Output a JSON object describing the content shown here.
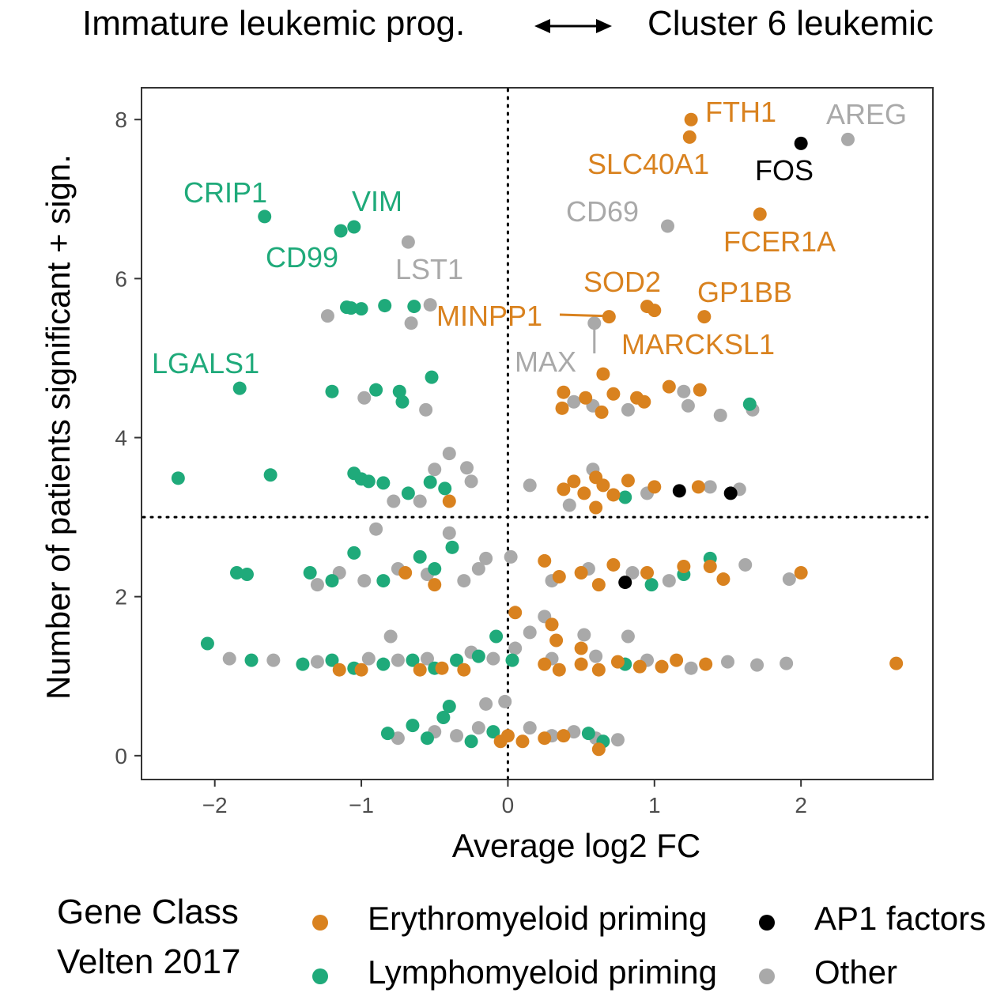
{
  "colors": {
    "erythromyeloid": "#d9821f",
    "lymphomyeloid": "#1faa7a",
    "ap1": "#000000",
    "other": "#a9a9a9"
  },
  "chart_data": {
    "type": "scatter",
    "title_left": "Immature leukemic prog.",
    "title_right": "Cluster 6 leukemic",
    "xlabel": "Average log2 FC",
    "ylabel": "Number of patients significant + sign.",
    "xlim": [
      -2.5,
      2.9
    ],
    "ylim": [
      -0.3,
      8.4
    ],
    "x_ticks": [
      {
        "value": -2,
        "label": "−2"
      },
      {
        "value": -1,
        "label": "−1"
      },
      {
        "value": 0,
        "label": "0"
      },
      {
        "value": 1,
        "label": "1"
      },
      {
        "value": 2,
        "label": "2"
      }
    ],
    "y_ticks": [
      {
        "value": 0,
        "label": "0"
      },
      {
        "value": 2,
        "label": "2"
      },
      {
        "value": 4,
        "label": "4"
      },
      {
        "value": 6,
        "label": "6"
      },
      {
        "value": 8,
        "label": "8"
      }
    ],
    "reference_lines": {
      "x": 0,
      "y": 3
    },
    "grid": false,
    "legend": {
      "title_line1": "Gene Class",
      "title_line2": "Velten 2017",
      "position": "bottom",
      "entries": [
        {
          "key": "erythromyeloid",
          "label": "Erythromyeloid priming"
        },
        {
          "key": "ap1",
          "label": "AP1 factors"
        },
        {
          "key": "lymphomyeloid",
          "label": "Lymphomyeloid priming"
        },
        {
          "key": "other",
          "label": "Other"
        }
      ]
    },
    "labeled_genes": [
      {
        "gene": "FTH1",
        "x": 1.25,
        "y": 8.0,
        "class": "erythromyeloid"
      },
      {
        "gene": "SLC40A1",
        "x": 1.24,
        "y": 7.78,
        "class": "erythromyeloid"
      },
      {
        "gene": "AREG",
        "x": 2.32,
        "y": 7.75,
        "class": "other"
      },
      {
        "gene": "FOS",
        "x": 2.0,
        "y": 7.7,
        "class": "ap1"
      },
      {
        "gene": "CRIP1",
        "x": -1.66,
        "y": 6.78,
        "class": "lymphomyeloid"
      },
      {
        "gene": "VIM",
        "x": -1.05,
        "y": 6.65,
        "class": "lymphomyeloid"
      },
      {
        "gene": "CD99",
        "x": -1.14,
        "y": 6.6,
        "class": "lymphomyeloid"
      },
      {
        "gene": "CD69",
        "x": 1.09,
        "y": 6.66,
        "class": "other"
      },
      {
        "gene": "FCER1A",
        "x": 1.72,
        "y": 6.81,
        "class": "erythromyeloid"
      },
      {
        "gene": "LST1",
        "x": -0.68,
        "y": 6.46,
        "class": "other"
      },
      {
        "gene": "SOD2",
        "x": 0.95,
        "y": 5.65,
        "class": "erythromyeloid"
      },
      {
        "gene": "GP1BB",
        "x": 1.34,
        "y": 5.52,
        "class": "erythromyeloid"
      },
      {
        "gene": "MINPP1",
        "x": 0.69,
        "y": 5.52,
        "class": "erythromyeloid"
      },
      {
        "gene": "MARCKSL1",
        "x": 1.0,
        "y": 5.6,
        "class": "erythromyeloid"
      },
      {
        "gene": "MAX",
        "x": 0.59,
        "y": 5.44,
        "class": "other"
      },
      {
        "gene": "LGALS1",
        "x": -1.83,
        "y": 4.62,
        "class": "lymphomyeloid"
      }
    ],
    "other_points": [
      {
        "x": -2.25,
        "y": 3.49,
        "class": "lymphomyeloid"
      },
      {
        "x": -1.62,
        "y": 3.53,
        "class": "lymphomyeloid"
      },
      {
        "x": -2.05,
        "y": 1.41,
        "class": "lymphomyeloid"
      },
      {
        "x": -1.85,
        "y": 2.3,
        "class": "lymphomyeloid"
      },
      {
        "x": -1.78,
        "y": 2.28,
        "class": "lymphomyeloid"
      },
      {
        "x": -1.35,
        "y": 2.3,
        "class": "lymphomyeloid"
      },
      {
        "x": -1.07,
        "y": 5.63,
        "class": "lymphomyeloid"
      },
      {
        "x": -1.1,
        "y": 5.64,
        "class": "lymphomyeloid"
      },
      {
        "x": -1.0,
        "y": 5.62,
        "class": "lymphomyeloid"
      },
      {
        "x": -0.84,
        "y": 5.66,
        "class": "lymphomyeloid"
      },
      {
        "x": -0.64,
        "y": 5.65,
        "class": "lymphomyeloid"
      },
      {
        "x": -0.53,
        "y": 5.67,
        "class": "other"
      },
      {
        "x": -1.23,
        "y": 5.53,
        "class": "other"
      },
      {
        "x": -0.66,
        "y": 5.44,
        "class": "other"
      },
      {
        "x": -1.2,
        "y": 4.58,
        "class": "lymphomyeloid"
      },
      {
        "x": -0.9,
        "y": 4.6,
        "class": "lymphomyeloid"
      },
      {
        "x": -0.74,
        "y": 4.58,
        "class": "lymphomyeloid"
      },
      {
        "x": -0.72,
        "y": 4.45,
        "class": "lymphomyeloid"
      },
      {
        "x": -0.52,
        "y": 4.76,
        "class": "lymphomyeloid"
      },
      {
        "x": -0.98,
        "y": 4.5,
        "class": "other"
      },
      {
        "x": -0.56,
        "y": 4.35,
        "class": "other"
      },
      {
        "x": 0.65,
        "y": 4.8,
        "class": "erythromyeloid"
      },
      {
        "x": 0.38,
        "y": 4.57,
        "class": "erythromyeloid"
      },
      {
        "x": 0.53,
        "y": 4.5,
        "class": "erythromyeloid"
      },
      {
        "x": 0.72,
        "y": 4.55,
        "class": "erythromyeloid"
      },
      {
        "x": 0.88,
        "y": 4.5,
        "class": "erythromyeloid"
      },
      {
        "x": 1.1,
        "y": 4.64,
        "class": "erythromyeloid"
      },
      {
        "x": 1.31,
        "y": 4.6,
        "class": "erythromyeloid"
      },
      {
        "x": 0.37,
        "y": 4.37,
        "class": "erythromyeloid"
      },
      {
        "x": 0.64,
        "y": 4.32,
        "class": "erythromyeloid"
      },
      {
        "x": 0.93,
        "y": 4.45,
        "class": "erythromyeloid"
      },
      {
        "x": 0.45,
        "y": 4.45,
        "class": "other"
      },
      {
        "x": 0.58,
        "y": 4.4,
        "class": "other"
      },
      {
        "x": 0.82,
        "y": 4.35,
        "class": "other"
      },
      {
        "x": 1.2,
        "y": 4.58,
        "class": "other"
      },
      {
        "x": 1.23,
        "y": 4.4,
        "class": "other"
      },
      {
        "x": 1.45,
        "y": 4.28,
        "class": "other"
      },
      {
        "x": 1.67,
        "y": 4.35,
        "class": "other"
      },
      {
        "x": 1.65,
        "y": 4.42,
        "class": "lymphomyeloid"
      },
      {
        "x": -1.05,
        "y": 3.55,
        "class": "lymphomyeloid"
      },
      {
        "x": -1.0,
        "y": 3.48,
        "class": "lymphomyeloid"
      },
      {
        "x": -0.95,
        "y": 3.45,
        "class": "lymphomyeloid"
      },
      {
        "x": -0.85,
        "y": 3.43,
        "class": "lymphomyeloid"
      },
      {
        "x": -0.68,
        "y": 3.3,
        "class": "lymphomyeloid"
      },
      {
        "x": -0.53,
        "y": 3.44,
        "class": "lymphomyeloid"
      },
      {
        "x": -0.43,
        "y": 3.36,
        "class": "lymphomyeloid"
      },
      {
        "x": -0.4,
        "y": 3.8,
        "class": "other"
      },
      {
        "x": -0.28,
        "y": 3.62,
        "class": "other"
      },
      {
        "x": -0.25,
        "y": 3.45,
        "class": "other"
      },
      {
        "x": -0.5,
        "y": 3.6,
        "class": "other"
      },
      {
        "x": -0.78,
        "y": 3.2,
        "class": "other"
      },
      {
        "x": -0.6,
        "y": 3.2,
        "class": "other"
      },
      {
        "x": -0.4,
        "y": 3.2,
        "class": "erythromyeloid"
      },
      {
        "x": 0.15,
        "y": 3.4,
        "class": "other"
      },
      {
        "x": 0.38,
        "y": 3.35,
        "class": "erythromyeloid"
      },
      {
        "x": 0.45,
        "y": 3.45,
        "class": "erythromyeloid"
      },
      {
        "x": 0.52,
        "y": 3.3,
        "class": "erythromyeloid"
      },
      {
        "x": 0.6,
        "y": 3.5,
        "class": "erythromyeloid"
      },
      {
        "x": 0.65,
        "y": 3.4,
        "class": "erythromyeloid"
      },
      {
        "x": 0.72,
        "y": 3.28,
        "class": "erythromyeloid"
      },
      {
        "x": 0.82,
        "y": 3.46,
        "class": "erythromyeloid"
      },
      {
        "x": 1.0,
        "y": 3.38,
        "class": "erythromyeloid"
      },
      {
        "x": 1.3,
        "y": 3.38,
        "class": "erythromyeloid"
      },
      {
        "x": 0.6,
        "y": 3.12,
        "class": "erythromyeloid"
      },
      {
        "x": 0.42,
        "y": 3.15,
        "class": "other"
      },
      {
        "x": 0.95,
        "y": 3.3,
        "class": "other"
      },
      {
        "x": 1.38,
        "y": 3.38,
        "class": "other"
      },
      {
        "x": 1.58,
        "y": 3.35,
        "class": "other"
      },
      {
        "x": 0.58,
        "y": 3.6,
        "class": "other"
      },
      {
        "x": 0.8,
        "y": 3.25,
        "class": "lymphomyeloid"
      },
      {
        "x": 1.17,
        "y": 3.33,
        "class": "ap1"
      },
      {
        "x": 1.52,
        "y": 3.3,
        "class": "ap1"
      },
      {
        "x": -0.9,
        "y": 2.85,
        "class": "other"
      },
      {
        "x": -0.4,
        "y": 2.8,
        "class": "other"
      },
      {
        "x": -1.05,
        "y": 2.55,
        "class": "lymphomyeloid"
      },
      {
        "x": -0.6,
        "y": 2.5,
        "class": "lymphomyeloid"
      },
      {
        "x": -0.38,
        "y": 2.62,
        "class": "lymphomyeloid"
      },
      {
        "x": -1.2,
        "y": 2.2,
        "class": "lymphomyeloid"
      },
      {
        "x": -0.85,
        "y": 2.2,
        "class": "lymphomyeloid"
      },
      {
        "x": -0.5,
        "y": 2.35,
        "class": "lymphomyeloid"
      },
      {
        "x": -0.7,
        "y": 2.3,
        "class": "erythromyeloid"
      },
      {
        "x": -0.5,
        "y": 2.15,
        "class": "erythromyeloid"
      },
      {
        "x": -1.15,
        "y": 2.3,
        "class": "other"
      },
      {
        "x": -0.98,
        "y": 2.2,
        "class": "other"
      },
      {
        "x": -0.75,
        "y": 2.35,
        "class": "other"
      },
      {
        "x": -0.55,
        "y": 2.28,
        "class": "other"
      },
      {
        "x": -0.3,
        "y": 2.2,
        "class": "other"
      },
      {
        "x": -0.2,
        "y": 2.35,
        "class": "other"
      },
      {
        "x": -1.3,
        "y": 2.15,
        "class": "other"
      },
      {
        "x": -0.15,
        "y": 2.48,
        "class": "other"
      },
      {
        "x": 0.02,
        "y": 2.5,
        "class": "other"
      },
      {
        "x": 0.25,
        "y": 2.45,
        "class": "erythromyeloid"
      },
      {
        "x": 0.35,
        "y": 2.25,
        "class": "erythromyeloid"
      },
      {
        "x": 0.5,
        "y": 2.3,
        "class": "erythromyeloid"
      },
      {
        "x": 0.62,
        "y": 2.15,
        "class": "erythromyeloid"
      },
      {
        "x": 0.72,
        "y": 2.4,
        "class": "erythromyeloid"
      },
      {
        "x": 0.95,
        "y": 2.3,
        "class": "erythromyeloid"
      },
      {
        "x": 1.2,
        "y": 2.38,
        "class": "erythromyeloid"
      },
      {
        "x": 1.38,
        "y": 2.38,
        "class": "erythromyeloid"
      },
      {
        "x": 1.47,
        "y": 2.22,
        "class": "erythromyeloid"
      },
      {
        "x": 2.0,
        "y": 2.3,
        "class": "erythromyeloid"
      },
      {
        "x": 1.38,
        "y": 2.48,
        "class": "lymphomyeloid"
      },
      {
        "x": 0.98,
        "y": 2.15,
        "class": "lymphomyeloid"
      },
      {
        "x": 1.2,
        "y": 2.28,
        "class": "lymphomyeloid"
      },
      {
        "x": 0.8,
        "y": 2.18,
        "class": "ap1"
      },
      {
        "x": 0.3,
        "y": 2.2,
        "class": "other"
      },
      {
        "x": 0.55,
        "y": 2.35,
        "class": "other"
      },
      {
        "x": 0.85,
        "y": 2.3,
        "class": "other"
      },
      {
        "x": 1.1,
        "y": 2.2,
        "class": "other"
      },
      {
        "x": 1.62,
        "y": 2.4,
        "class": "other"
      },
      {
        "x": 1.92,
        "y": 2.22,
        "class": "other"
      },
      {
        "x": 0.05,
        "y": 1.8,
        "class": "erythromyeloid"
      },
      {
        "x": 0.3,
        "y": 1.65,
        "class": "erythromyeloid"
      },
      {
        "x": 0.33,
        "y": 1.45,
        "class": "erythromyeloid"
      },
      {
        "x": 0.5,
        "y": 1.35,
        "class": "erythromyeloid"
      },
      {
        "x": 0.15,
        "y": 1.55,
        "class": "other"
      },
      {
        "x": 0.25,
        "y": 1.75,
        "class": "other"
      },
      {
        "x": 0.52,
        "y": 1.52,
        "class": "other"
      },
      {
        "x": 0.82,
        "y": 1.5,
        "class": "other"
      },
      {
        "x": -0.08,
        "y": 1.5,
        "class": "lymphomyeloid"
      },
      {
        "x": -0.2,
        "y": 1.25,
        "class": "lymphomyeloid"
      },
      {
        "x": -0.35,
        "y": 1.2,
        "class": "lymphomyeloid"
      },
      {
        "x": -1.75,
        "y": 1.2,
        "class": "lymphomyeloid"
      },
      {
        "x": -1.4,
        "y": 1.15,
        "class": "lymphomyeloid"
      },
      {
        "x": -1.2,
        "y": 1.2,
        "class": "lymphomyeloid"
      },
      {
        "x": -1.05,
        "y": 1.1,
        "class": "lymphomyeloid"
      },
      {
        "x": -0.85,
        "y": 1.15,
        "class": "lymphomyeloid"
      },
      {
        "x": -0.65,
        "y": 1.2,
        "class": "lymphomyeloid"
      },
      {
        "x": -0.5,
        "y": 1.1,
        "class": "lymphomyeloid"
      },
      {
        "x": -1.15,
        "y": 1.08,
        "class": "erythromyeloid"
      },
      {
        "x": -1.0,
        "y": 1.08,
        "class": "erythromyeloid"
      },
      {
        "x": -0.6,
        "y": 1.08,
        "class": "erythromyeloid"
      },
      {
        "x": -0.45,
        "y": 1.1,
        "class": "erythromyeloid"
      },
      {
        "x": -0.3,
        "y": 1.08,
        "class": "erythromyeloid"
      },
      {
        "x": -1.9,
        "y": 1.22,
        "class": "other"
      },
      {
        "x": -1.6,
        "y": 1.2,
        "class": "other"
      },
      {
        "x": -1.3,
        "y": 1.18,
        "class": "other"
      },
      {
        "x": -0.95,
        "y": 1.22,
        "class": "other"
      },
      {
        "x": -0.75,
        "y": 1.2,
        "class": "other"
      },
      {
        "x": -0.55,
        "y": 1.22,
        "class": "other"
      },
      {
        "x": -0.25,
        "y": 1.3,
        "class": "other"
      },
      {
        "x": -0.1,
        "y": 1.22,
        "class": "other"
      },
      {
        "x": -0.8,
        "y": 1.5,
        "class": "other"
      },
      {
        "x": 0.05,
        "y": 1.35,
        "class": "other"
      },
      {
        "x": 0.25,
        "y": 1.15,
        "class": "erythromyeloid"
      },
      {
        "x": 0.35,
        "y": 1.08,
        "class": "erythromyeloid"
      },
      {
        "x": 0.5,
        "y": 1.15,
        "class": "erythromyeloid"
      },
      {
        "x": 0.62,
        "y": 1.08,
        "class": "erythromyeloid"
      },
      {
        "x": 0.75,
        "y": 1.18,
        "class": "erythromyeloid"
      },
      {
        "x": 0.9,
        "y": 1.12,
        "class": "erythromyeloid"
      },
      {
        "x": 1.05,
        "y": 1.12,
        "class": "erythromyeloid"
      },
      {
        "x": 1.15,
        "y": 1.2,
        "class": "erythromyeloid"
      },
      {
        "x": 1.35,
        "y": 1.15,
        "class": "erythromyeloid"
      },
      {
        "x": 2.65,
        "y": 1.16,
        "class": "erythromyeloid"
      },
      {
        "x": 0.3,
        "y": 1.22,
        "class": "other"
      },
      {
        "x": 0.6,
        "y": 1.25,
        "class": "other"
      },
      {
        "x": 0.95,
        "y": 1.2,
        "class": "other"
      },
      {
        "x": 1.25,
        "y": 1.1,
        "class": "other"
      },
      {
        "x": 1.5,
        "y": 1.18,
        "class": "other"
      },
      {
        "x": 1.7,
        "y": 1.14,
        "class": "other"
      },
      {
        "x": 1.9,
        "y": 1.16,
        "class": "other"
      },
      {
        "x": 0.8,
        "y": 1.15,
        "class": "lymphomyeloid"
      },
      {
        "x": 0.03,
        "y": 1.2,
        "class": "lymphomyeloid"
      },
      {
        "x": -0.4,
        "y": 0.62,
        "class": "lymphomyeloid"
      },
      {
        "x": -0.44,
        "y": 0.48,
        "class": "lymphomyeloid"
      },
      {
        "x": -0.65,
        "y": 0.38,
        "class": "lymphomyeloid"
      },
      {
        "x": -0.82,
        "y": 0.28,
        "class": "lymphomyeloid"
      },
      {
        "x": -0.55,
        "y": 0.22,
        "class": "lymphomyeloid"
      },
      {
        "x": -0.25,
        "y": 0.18,
        "class": "lymphomyeloid"
      },
      {
        "x": -0.1,
        "y": 0.3,
        "class": "lymphomyeloid"
      },
      {
        "x": 0.55,
        "y": 0.28,
        "class": "lymphomyeloid"
      },
      {
        "x": 0.65,
        "y": 0.18,
        "class": "lymphomyeloid"
      },
      {
        "x": -0.15,
        "y": 0.65,
        "class": "other"
      },
      {
        "x": -0.02,
        "y": 0.68,
        "class": "other"
      },
      {
        "x": -0.75,
        "y": 0.22,
        "class": "other"
      },
      {
        "x": -0.5,
        "y": 0.3,
        "class": "other"
      },
      {
        "x": -0.35,
        "y": 0.25,
        "class": "other"
      },
      {
        "x": -0.2,
        "y": 0.35,
        "class": "other"
      },
      {
        "x": 0.15,
        "y": 0.35,
        "class": "other"
      },
      {
        "x": 0.3,
        "y": 0.25,
        "class": "other"
      },
      {
        "x": 0.45,
        "y": 0.3,
        "class": "other"
      },
      {
        "x": 0.6,
        "y": 0.22,
        "class": "other"
      },
      {
        "x": 0.75,
        "y": 0.2,
        "class": "other"
      },
      {
        "x": 0.0,
        "y": 0.25,
        "class": "erythromyeloid"
      },
      {
        "x": 0.1,
        "y": 0.18,
        "class": "erythromyeloid"
      },
      {
        "x": 0.25,
        "y": 0.22,
        "class": "erythromyeloid"
      },
      {
        "x": 0.38,
        "y": 0.25,
        "class": "erythromyeloid"
      },
      {
        "x": 0.62,
        "y": 0.08,
        "class": "erythromyeloid"
      },
      {
        "x": -0.05,
        "y": 0.18,
        "class": "erythromyeloid"
      }
    ]
  }
}
